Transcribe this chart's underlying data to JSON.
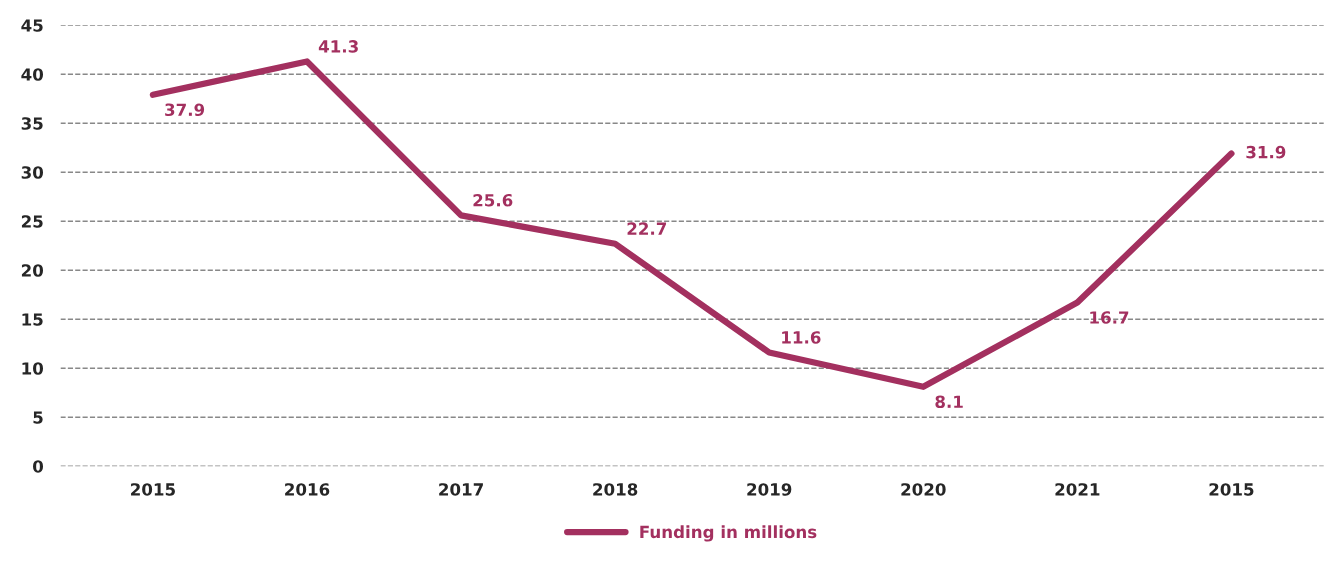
{
  "chart_data": {
    "type": "line",
    "categories": [
      "2015",
      "2016",
      "2017",
      "2018",
      "2019",
      "2020",
      "2021",
      "2015"
    ],
    "series": [
      {
        "name": "Funding in millions",
        "color": "#a3305f",
        "values": [
          37.9,
          41.3,
          25.6,
          22.7,
          11.6,
          8.1,
          16.7,
          31.9
        ]
      }
    ],
    "ylim": [
      0,
      45
    ],
    "yticks": [
      0,
      5,
      10,
      15,
      20,
      25,
      30,
      35,
      40,
      45
    ],
    "grid": "y",
    "data_labels": true,
    "legend": "bottom",
    "marker": "none",
    "line_style": "solid"
  }
}
